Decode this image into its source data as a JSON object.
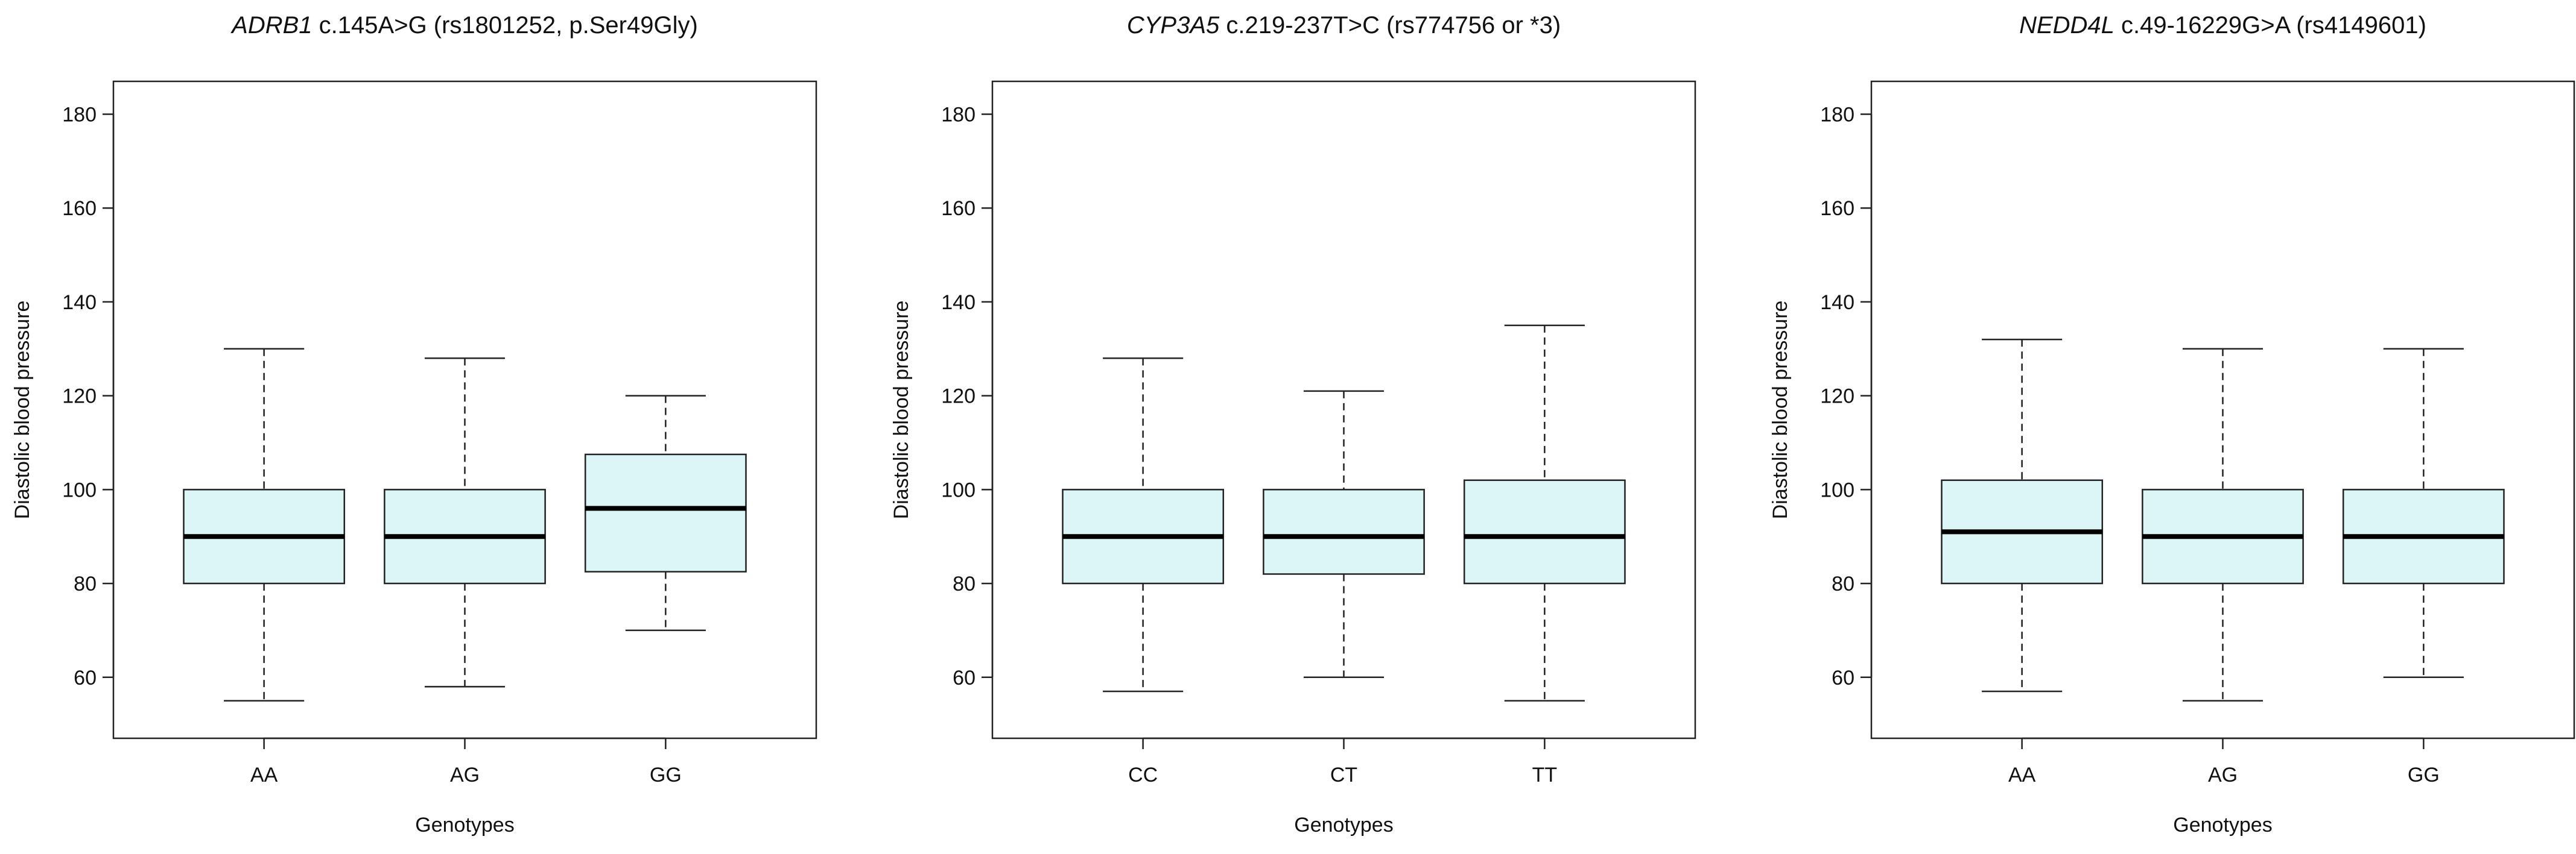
{
  "style": {
    "box_fill": "#dcf5f7",
    "line_color": "#222222",
    "median_color": "#000000"
  },
  "chart_data": [
    {
      "type": "box",
      "title": "ADRB1 c.145A>G (rs1801252, p.Ser49Gly)",
      "title_italic": "ADRB1",
      "title_rest": " c.145A>G (rs1801252, p.Ser49Gly)",
      "xlabel": "Genotypes",
      "ylabel": "Diastolic blood pressure",
      "ylim": [
        47,
        187
      ],
      "yticks": [
        60,
        80,
        100,
        120,
        140,
        160,
        180
      ],
      "categories": [
        "AA",
        "AG",
        "GG"
      ],
      "boxes": [
        {
          "label": "AA",
          "min": 55,
          "q1": 80,
          "median": 90,
          "q3": 100,
          "max": 130
        },
        {
          "label": "AG",
          "min": 58,
          "q1": 80,
          "median": 90,
          "q3": 100,
          "max": 128
        },
        {
          "label": "GG",
          "min": 70,
          "q1": 82.5,
          "median": 96,
          "q3": 107.5,
          "max": 120
        }
      ]
    },
    {
      "type": "box",
      "title": "CYP3A5 c.219-237T>C (rs774756 or *3)",
      "title_italic": "CYP3A5",
      "title_rest": " c.219-237T>C (rs774756 or *3)",
      "xlabel": "Genotypes",
      "ylabel": "Diastolic blood pressure",
      "ylim": [
        47,
        187
      ],
      "yticks": [
        60,
        80,
        100,
        120,
        140,
        160,
        180
      ],
      "categories": [
        "CC",
        "CT",
        "TT"
      ],
      "boxes": [
        {
          "label": "CC",
          "min": 57,
          "q1": 80,
          "median": 90,
          "q3": 100,
          "max": 128
        },
        {
          "label": "CT",
          "min": 60,
          "q1": 82,
          "median": 90,
          "q3": 100,
          "max": 121
        },
        {
          "label": "TT",
          "min": 55,
          "q1": 80,
          "median": 90,
          "q3": 102,
          "max": 135
        }
      ]
    },
    {
      "type": "box",
      "title": "NEDD4L c.49-16229G>A (rs4149601)",
      "title_italic": "NEDD4L",
      "title_rest": " c.49-16229G>A (rs4149601)",
      "xlabel": "Genotypes",
      "ylabel": "Diastolic blood pressure",
      "ylim": [
        47,
        187
      ],
      "yticks": [
        60,
        80,
        100,
        120,
        140,
        160,
        180
      ],
      "categories": [
        "AA",
        "AG",
        "GG"
      ],
      "boxes": [
        {
          "label": "AA",
          "min": 57,
          "q1": 80,
          "median": 91,
          "q3": 102,
          "max": 132
        },
        {
          "label": "AG",
          "min": 55,
          "q1": 80,
          "median": 90,
          "q3": 100,
          "max": 130
        },
        {
          "label": "GG",
          "min": 60,
          "q1": 80,
          "median": 90,
          "q3": 100,
          "max": 130
        }
      ]
    }
  ]
}
